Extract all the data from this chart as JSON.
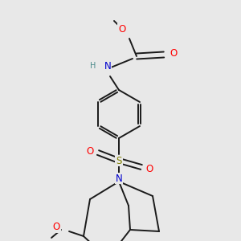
{
  "bg_color": "#e8e8e8",
  "bond_color": "#1a1a1a",
  "atom_colors": {
    "O": "#ff0000",
    "N": "#0000cd",
    "S": "#808000",
    "H": "#4a8a8a",
    "C": "#1a1a1a"
  },
  "font_size_atom": 8.5,
  "font_size_small": 7.0,
  "line_width": 1.4
}
